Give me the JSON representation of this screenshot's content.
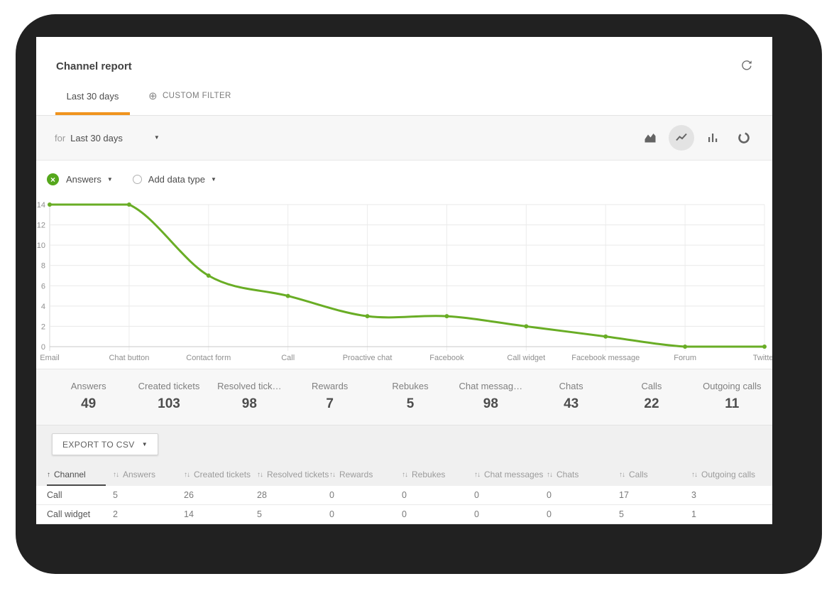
{
  "header": {
    "title": "Channel report"
  },
  "tabs": {
    "last30": "Last 30 days",
    "custom": "CUSTOM FILTER"
  },
  "toolbar": {
    "prefix": "for",
    "period": "Last 30 days",
    "chart_types": [
      "area-chart",
      "line-chart",
      "bar-chart",
      "donut-chart"
    ],
    "selected_chart_type": "line-chart"
  },
  "series_selector": {
    "series": "Answers",
    "add": "Add data type"
  },
  "chart_data": {
    "type": "line",
    "categories": [
      "Email",
      "Chat button",
      "Contact form",
      "Call",
      "Proactive chat",
      "Facebook",
      "Call widget",
      "Facebook message",
      "Forum",
      "Twitter"
    ],
    "series": [
      {
        "name": "Answers",
        "values": [
          14,
          14,
          7,
          5,
          3,
          3,
          2,
          1,
          0,
          0
        ],
        "color": "#69ad25"
      }
    ],
    "ylim": [
      0,
      14
    ],
    "yticks": [
      0,
      2,
      4,
      6,
      8,
      10,
      12,
      14
    ],
    "grid": true,
    "legend": "none",
    "title": "",
    "xlabel": "",
    "ylabel": ""
  },
  "stats": [
    {
      "label": "Answers",
      "value": "49"
    },
    {
      "label": "Created tickets",
      "value": "103"
    },
    {
      "label": "Resolved tick…",
      "value": "98"
    },
    {
      "label": "Rewards",
      "value": "7"
    },
    {
      "label": "Rebukes",
      "value": "5"
    },
    {
      "label": "Chat messag…",
      "value": "98"
    },
    {
      "label": "Chats",
      "value": "43"
    },
    {
      "label": "Calls",
      "value": "22"
    },
    {
      "label": "Outgoing calls",
      "value": "11"
    }
  ],
  "export": {
    "label": "EXPORT TO CSV"
  },
  "table": {
    "sort_column": "Channel",
    "columns": [
      "Channel",
      "Answers",
      "Created tickets",
      "Resolved tickets",
      "Rewards",
      "Rebukes",
      "Chat messages",
      "Chats",
      "Calls",
      "Outgoing calls"
    ],
    "rows": [
      {
        "channel": "Call",
        "values": [
          "5",
          "26",
          "28",
          "0",
          "0",
          "0",
          "0",
          "17",
          "3"
        ]
      },
      {
        "channel": "Call widget",
        "values": [
          "2",
          "14",
          "5",
          "0",
          "0",
          "0",
          "0",
          "5",
          "1"
        ]
      }
    ]
  },
  "icons": {
    "plus_circle": "⊕",
    "close": "×",
    "caret_down": "▼",
    "sort_asc": "↑",
    "sort_both": "↑↓"
  },
  "colors": {
    "accent_orange": "#f0941e",
    "line_green": "#69ad25",
    "icon_green": "#55a71c",
    "frame": "#212121"
  }
}
